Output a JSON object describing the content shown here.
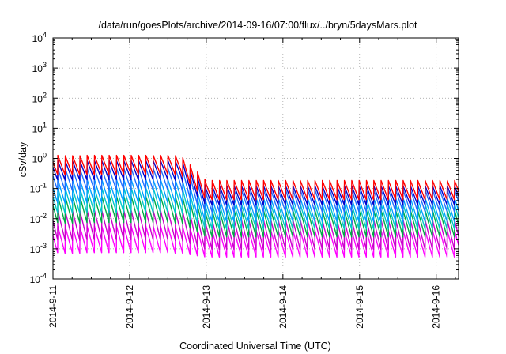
{
  "chart_data": {
    "type": "line",
    "title": "/data/run/goesPlots/archive/2014-09-16/07:00/flux/../bryn/5daysMars.plot",
    "xlabel": "Coordinated Universal Time (UTC)",
    "ylabel": "cSv/day",
    "y_scale": "log",
    "ylim": [
      0.0001,
      10000
    ],
    "y_ticks": [
      {
        "base": "10",
        "exp": "4"
      },
      {
        "base": "10",
        "exp": "3"
      },
      {
        "base": "10",
        "exp": "2"
      },
      {
        "base": "10",
        "exp": "1"
      },
      {
        "base": "10",
        "exp": "0"
      },
      {
        "base": "10",
        "exp": "-1"
      },
      {
        "base": "10",
        "exp": "-2"
      },
      {
        "base": "10",
        "exp": "-3"
      },
      {
        "base": "10",
        "exp": "-4"
      }
    ],
    "xlim": [
      "2014-09-11T00:00",
      "2014-09-16T07:00"
    ],
    "x_ticks": [
      "2014-9-11",
      "2014-9-12",
      "2014-9-13",
      "2014-9-14",
      "2014-9-15",
      "2014-9-16"
    ],
    "grid": true,
    "legend": "none",
    "sawtooth_period_hours": 2.3,
    "series": [
      {
        "color": "#ff0000",
        "level_days_1_2": 0.6,
        "level_days_3_6": 0.09,
        "amplitude_decades": 0.65
      },
      {
        "color": "#0000cc",
        "level_days_1_2": 0.4,
        "level_days_3_6": 0.06,
        "amplitude_decades": 0.65
      },
      {
        "color": "#1e6fff",
        "level_days_1_2": 0.2,
        "level_days_3_6": 0.04,
        "amplitude_decades": 0.75
      },
      {
        "color": "#00a0ff",
        "level_days_1_2": 0.08,
        "level_days_3_6": 0.02,
        "amplitude_decades": 0.8
      },
      {
        "color": "#00c8c8",
        "level_days_1_2": 0.04,
        "level_days_3_6": 0.012,
        "amplitude_decades": 0.85
      },
      {
        "color": "#00aa44",
        "level_days_1_2": 0.02,
        "level_days_3_6": 0.007,
        "amplitude_decades": 0.9
      },
      {
        "color": "#cc00cc",
        "level_days_1_2": 0.006,
        "level_days_3_6": 0.003,
        "amplitude_decades": 1.0
      },
      {
        "color": "#ff00ff",
        "level_days_1_2": 0.002,
        "level_days_3_6": 0.0015,
        "amplitude_decades": 0.9
      }
    ]
  }
}
